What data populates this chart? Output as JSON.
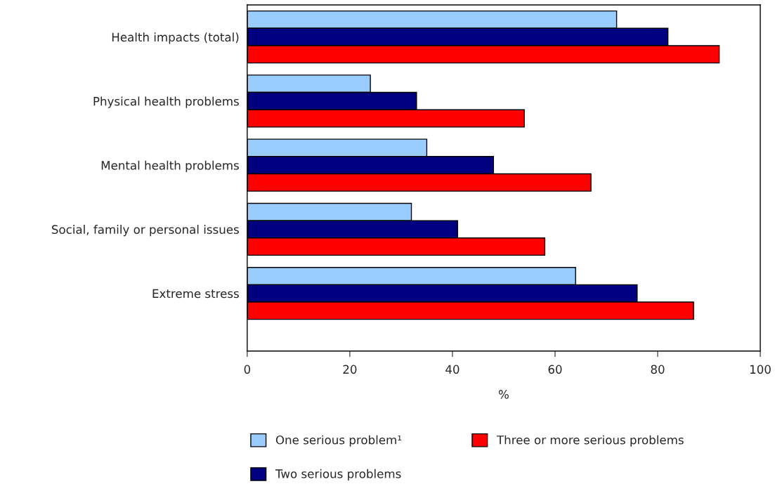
{
  "chart_data": {
    "type": "bar",
    "orientation": "horizontal",
    "xlabel": "%",
    "categories": [
      "Health impacts (total)",
      "Physical health problems",
      "Mental health problems",
      "Social, family or personal issues",
      "Extreme stress"
    ],
    "series": [
      {
        "name": "One serious problem¹",
        "color": "#99ccff",
        "values": [
          72,
          24,
          35,
          32,
          64
        ]
      },
      {
        "name": "Two serious problems",
        "color": "#000080",
        "values": [
          82,
          33,
          48,
          41,
          76
        ]
      },
      {
        "name": "Three or more serious problems",
        "color": "#ff0000",
        "values": [
          92,
          54,
          67,
          58,
          87
        ]
      }
    ],
    "xlim": [
      0,
      100
    ],
    "xticks": [
      0,
      20,
      40,
      60,
      80,
      100
    ],
    "grid": false,
    "legend": "bottom"
  }
}
